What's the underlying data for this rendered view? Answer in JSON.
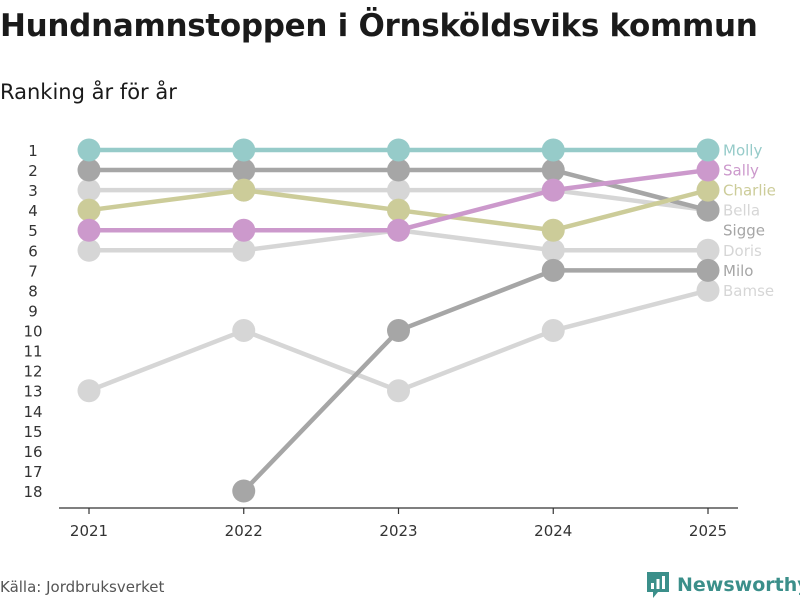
{
  "header": {
    "title": "Hundnamnstoppen i Örnsköldsviks kommun",
    "subtitle": "Ranking år för år"
  },
  "footer": {
    "source": "Källa: Jordbruksverket",
    "brand": "Newsworthy"
  },
  "colors": {
    "molly": "#96cbc9",
    "grey_dark": "#a6a6a6",
    "grey_light": "#d6d6d6",
    "charlie": "#cccc99",
    "sally": "#cc99cc",
    "brand": "#3b8f8a",
    "axis": "#333333"
  },
  "chart_data": {
    "type": "line",
    "title": "Hundnamnstoppen i Örnsköldsviks kommun",
    "subtitle": "Ranking år för år",
    "xlabel": "",
    "ylabel": "",
    "x": [
      2021,
      2022,
      2023,
      2024,
      2025
    ],
    "ylim": [
      1,
      18
    ],
    "y_ticks": [
      1,
      2,
      3,
      4,
      5,
      6,
      7,
      8,
      9,
      10,
      11,
      12,
      13,
      14,
      15,
      16,
      17,
      18
    ],
    "y_inverted": true,
    "series": [
      {
        "name": "Bamse",
        "color": "#d6d6d6",
        "values": [
          13,
          10,
          13,
          10,
          8
        ]
      },
      {
        "name": "Doris",
        "color": "#d6d6d6",
        "values": [
          6,
          6,
          5,
          6,
          6
        ]
      },
      {
        "name": "Bella",
        "color": "#d6d6d6",
        "values": [
          3,
          3,
          3,
          3,
          4
        ]
      },
      {
        "name": "Milo",
        "color": "#a6a6a6",
        "values": [
          null,
          18,
          10,
          7,
          7
        ]
      },
      {
        "name": "Sigge",
        "color": "#a6a6a6",
        "values": [
          2,
          2,
          2,
          2,
          4
        ]
      },
      {
        "name": "Charlie",
        "color": "#cccc99",
        "values": [
          4,
          3,
          4,
          5,
          3
        ]
      },
      {
        "name": "Sally",
        "color": "#cc99cc",
        "values": [
          5,
          5,
          5,
          3,
          2
        ]
      },
      {
        "name": "Molly",
        "color": "#96cbc9",
        "values": [
          1,
          1,
          1,
          1,
          1
        ]
      }
    ],
    "end_labels": [
      {
        "name": "Molly",
        "color": "#96cbc9"
      },
      {
        "name": "Sally",
        "color": "#cc99cc"
      },
      {
        "name": "Charlie",
        "color": "#cccc99"
      },
      {
        "name": "Bella",
        "color": "#d6d6d6"
      },
      {
        "name": "Sigge",
        "color": "#a6a6a6"
      },
      {
        "name": "Doris",
        "color": "#d6d6d6"
      },
      {
        "name": "Milo",
        "color": "#a6a6a6"
      },
      {
        "name": "Bamse",
        "color": "#d6d6d6"
      }
    ]
  }
}
